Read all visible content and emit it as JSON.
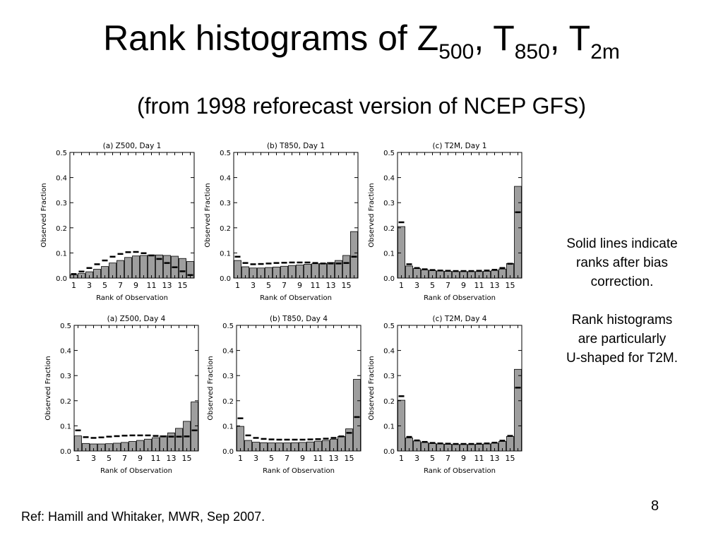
{
  "slide": {
    "title_main": "Rank histograms of Z",
    "title_sub1": "500",
    "title_sep1": ", T",
    "title_sub2": "850",
    "title_sep2": ", T",
    "title_sub3": "2m",
    "subtitle": "(from 1998 reforecast version of NCEP GFS)",
    "note1": [
      "Solid lines indicate",
      "ranks after bias",
      "correction."
    ],
    "note2": [
      "Rank histograms",
      "are particularly",
      "U-shaped for T2M."
    ],
    "reference": "Ref: Hamill and Whitaker, MWR, Sep 2007.",
    "page_number": "8"
  },
  "colors": {
    "bar_fill": "#9e9e9e",
    "bar_stroke": "#000000",
    "line": "#000000"
  },
  "chart_data": [
    {
      "type": "bar",
      "title": "(a) Z500, Day 1",
      "xlabel": "Rank of Observation",
      "ylabel": "Observed Fraction",
      "ylim": [
        0,
        0.5
      ],
      "yticks": [
        "0.0",
        "0.1",
        "0.2",
        "0.3",
        "0.4",
        "0.5"
      ],
      "xticks": [
        "1",
        "3",
        "5",
        "7",
        "9",
        "11",
        "13",
        "15"
      ],
      "categories": [
        1,
        2,
        3,
        4,
        5,
        6,
        7,
        8,
        9,
        10,
        11,
        12,
        13,
        14,
        15,
        16
      ],
      "series": [
        {
          "values": [
            0.013,
            0.018,
            0.025,
            0.035,
            0.046,
            0.06,
            0.07,
            0.082,
            0.088,
            0.09,
            0.092,
            0.092,
            0.09,
            0.087,
            0.078,
            0.066
          ]
        },
        {
          "style": "line",
          "values": [
            0.016,
            0.026,
            0.04,
            0.055,
            0.07,
            0.085,
            0.096,
            0.103,
            0.104,
            0.099,
            0.09,
            0.076,
            0.06,
            0.043,
            0.027,
            0.012
          ]
        }
      ]
    },
    {
      "type": "bar",
      "title": "(b) T850, Day 1",
      "xlabel": "Rank of Observation",
      "ylabel": "Observed Fraction",
      "ylim": [
        0,
        0.5
      ],
      "yticks": [
        "0.0",
        "0.1",
        "0.2",
        "0.3",
        "0.4",
        "0.5"
      ],
      "xticks": [
        "1",
        "3",
        "5",
        "7",
        "9",
        "11",
        "13",
        "15"
      ],
      "categories": [
        1,
        2,
        3,
        4,
        5,
        6,
        7,
        8,
        9,
        10,
        11,
        12,
        13,
        14,
        15,
        16
      ],
      "series": [
        {
          "values": [
            0.07,
            0.045,
            0.04,
            0.04,
            0.042,
            0.044,
            0.047,
            0.05,
            0.052,
            0.055,
            0.057,
            0.058,
            0.062,
            0.07,
            0.09,
            0.185
          ]
        },
        {
          "style": "line",
          "values": [
            0.085,
            0.06,
            0.055,
            0.056,
            0.058,
            0.06,
            0.061,
            0.062,
            0.062,
            0.062,
            0.06,
            0.058,
            0.058,
            0.058,
            0.06,
            0.085
          ]
        }
      ]
    },
    {
      "type": "bar",
      "title": "(c) T2M, Day 1",
      "xlabel": "Rank of Observation",
      "ylabel": "Observed Fraction",
      "ylim": [
        0,
        0.5
      ],
      "yticks": [
        "0.0",
        "0.1",
        "0.2",
        "0.3",
        "0.4",
        "0.5"
      ],
      "xticks": [
        "1",
        "3",
        "5",
        "7",
        "9",
        "11",
        "13",
        "15"
      ],
      "categories": [
        1,
        2,
        3,
        4,
        5,
        6,
        7,
        8,
        9,
        10,
        11,
        12,
        13,
        14,
        15,
        16
      ],
      "series": [
        {
          "values": [
            0.205,
            0.048,
            0.038,
            0.033,
            0.03,
            0.028,
            0.027,
            0.026,
            0.026,
            0.026,
            0.026,
            0.027,
            0.03,
            0.036,
            0.058,
            0.365
          ]
        },
        {
          "style": "line",
          "values": [
            0.222,
            0.055,
            0.04,
            0.035,
            0.032,
            0.03,
            0.029,
            0.028,
            0.028,
            0.028,
            0.029,
            0.03,
            0.033,
            0.04,
            0.057,
            0.262
          ]
        }
      ]
    },
    {
      "type": "bar",
      "title": "(a) Z500, Day 4",
      "xlabel": "Rank of Observation",
      "ylabel": "Observed Fraction",
      "ylim": [
        0,
        0.5
      ],
      "yticks": [
        "0.0",
        "0.1",
        "0.2",
        "0.3",
        "0.4",
        "0.5"
      ],
      "xticks": [
        "1",
        "3",
        "5",
        "7",
        "9",
        "11",
        "13",
        "15"
      ],
      "categories": [
        1,
        2,
        3,
        4,
        5,
        6,
        7,
        8,
        9,
        10,
        11,
        12,
        13,
        14,
        15,
        16
      ],
      "series": [
        {
          "values": [
            0.06,
            0.03,
            0.028,
            0.028,
            0.029,
            0.031,
            0.034,
            0.038,
            0.042,
            0.047,
            0.053,
            0.06,
            0.072,
            0.09,
            0.118,
            0.195
          ]
        },
        {
          "style": "line",
          "values": [
            0.082,
            0.055,
            0.052,
            0.054,
            0.057,
            0.059,
            0.061,
            0.062,
            0.062,
            0.062,
            0.06,
            0.058,
            0.057,
            0.057,
            0.058,
            0.082
          ]
        }
      ]
    },
    {
      "type": "bar",
      "title": "(b) T850, Day 4",
      "xlabel": "Rank of Observation",
      "ylabel": "Observed Fraction",
      "ylim": [
        0,
        0.5
      ],
      "yticks": [
        "0.0",
        "0.1",
        "0.2",
        "0.3",
        "0.4",
        "0.5"
      ],
      "xticks": [
        "1",
        "3",
        "5",
        "7",
        "9",
        "11",
        "13",
        "15"
      ],
      "categories": [
        1,
        2,
        3,
        4,
        5,
        6,
        7,
        8,
        9,
        10,
        11,
        12,
        13,
        14,
        15,
        16
      ],
      "series": [
        {
          "values": [
            0.098,
            0.042,
            0.035,
            0.033,
            0.032,
            0.032,
            0.032,
            0.033,
            0.034,
            0.036,
            0.039,
            0.042,
            0.047,
            0.058,
            0.088,
            0.285
          ]
        },
        {
          "style": "line",
          "values": [
            0.13,
            0.062,
            0.052,
            0.048,
            0.046,
            0.045,
            0.045,
            0.045,
            0.045,
            0.046,
            0.047,
            0.049,
            0.052,
            0.058,
            0.072,
            0.135
          ]
        }
      ]
    },
    {
      "type": "bar",
      "title": "(c) T2M, Day 4",
      "xlabel": "Rank of Observation",
      "ylabel": "Observed Fraction",
      "ylim": [
        0,
        0.5
      ],
      "yticks": [
        "0.0",
        "0.1",
        "0.2",
        "0.3",
        "0.4",
        "0.5"
      ],
      "xticks": [
        "1",
        "3",
        "5",
        "7",
        "9",
        "11",
        "13",
        "15"
      ],
      "categories": [
        1,
        2,
        3,
        4,
        5,
        6,
        7,
        8,
        9,
        10,
        11,
        12,
        13,
        14,
        15,
        16
      ],
      "series": [
        {
          "values": [
            0.202,
            0.052,
            0.04,
            0.034,
            0.03,
            0.028,
            0.027,
            0.026,
            0.026,
            0.026,
            0.027,
            0.028,
            0.031,
            0.038,
            0.058,
            0.325
          ]
        },
        {
          "style": "line",
          "values": [
            0.218,
            0.056,
            0.042,
            0.036,
            0.032,
            0.03,
            0.029,
            0.028,
            0.028,
            0.028,
            0.029,
            0.03,
            0.033,
            0.041,
            0.06,
            0.252
          ]
        }
      ]
    }
  ]
}
